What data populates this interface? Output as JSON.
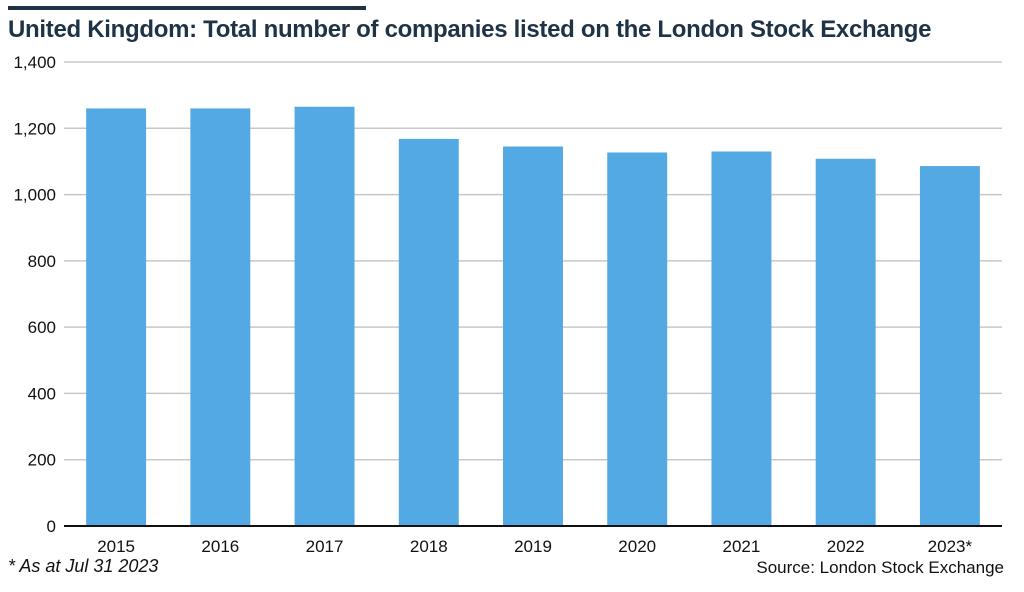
{
  "chart_data": {
    "type": "bar",
    "title": "United Kingdom: Total number of companies listed on the London Stock Exchange",
    "categories": [
      "2015",
      "2016",
      "2017",
      "2018",
      "2019",
      "2020",
      "2021",
      "2022",
      "2023*"
    ],
    "values": [
      1260,
      1260,
      1265,
      1168,
      1145,
      1127,
      1130,
      1108,
      1086
    ],
    "ylim": [
      0,
      1400
    ],
    "yticks": [
      "0",
      "200",
      "400",
      "600",
      "800",
      "1,000",
      "1,200",
      "1,400"
    ],
    "ytick_values": [
      0,
      200,
      400,
      600,
      800,
      1000,
      1200,
      1400
    ],
    "xlabel": "",
    "ylabel": "",
    "grid": true,
    "bar_color": "#52a9e3",
    "grid_color": "#c8c8c8"
  },
  "footnote": "* As at Jul 31 2023",
  "source": "Source: London Stock Exchange"
}
